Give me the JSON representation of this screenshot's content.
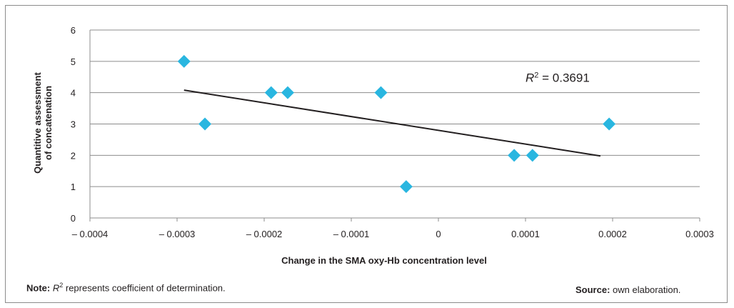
{
  "chart_data": {
    "type": "scatter",
    "xlabel": "Change in the SMA oxy-Hb concentration level",
    "ylabel_line1": "Quantitive assessment",
    "ylabel_line2": "of concatenation",
    "xlim": [
      -0.0004,
      0.0003
    ],
    "ylim": [
      0,
      6
    ],
    "x_ticks": [
      -0.0004,
      -0.0003,
      -0.0002,
      -0.0001,
      0,
      0.0001,
      0.0002,
      0.0003
    ],
    "x_tick_labels": [
      "– 0.0004",
      "– 0.0003",
      "– 0.0002",
      "– 0.0001",
      "0",
      "0.0001",
      "0.0002",
      "0.0003"
    ],
    "y_ticks": [
      0,
      1,
      2,
      3,
      4,
      5,
      6
    ],
    "y_tick_labels": [
      "0",
      "1",
      "2",
      "3",
      "4",
      "5",
      "6"
    ],
    "grid": "horizontal",
    "marker": "diamond",
    "marker_color": "#29b6e0",
    "trendline_color": "#231f20",
    "points": [
      {
        "x": -0.000292,
        "y": 5
      },
      {
        "x": -0.000268,
        "y": 3
      },
      {
        "x": -0.000192,
        "y": 4
      },
      {
        "x": -0.000173,
        "y": 4
      },
      {
        "x": -6.6e-05,
        "y": 4
      },
      {
        "x": -3.7e-05,
        "y": 1
      },
      {
        "x": 8.7e-05,
        "y": 2
      },
      {
        "x": 0.000108,
        "y": 2
      },
      {
        "x": 0.000196,
        "y": 3
      }
    ],
    "trendline": {
      "x": [
        -0.000292,
        0.000186
      ],
      "y": [
        4.08,
        1.98
      ]
    },
    "r2_label_prefix": "R",
    "r2_label_exp": "2",
    "r2_label_value": " = 0.3691",
    "r2_label_anchor": {
      "x": 0.0001,
      "y": 4.35
    }
  },
  "footer": {
    "note_label": "Note:",
    "note_r": "R",
    "note_exp": "2",
    "note_text": " represents coefficient of determination.",
    "source_label": "Source:",
    "source_text": " own elaboration."
  }
}
